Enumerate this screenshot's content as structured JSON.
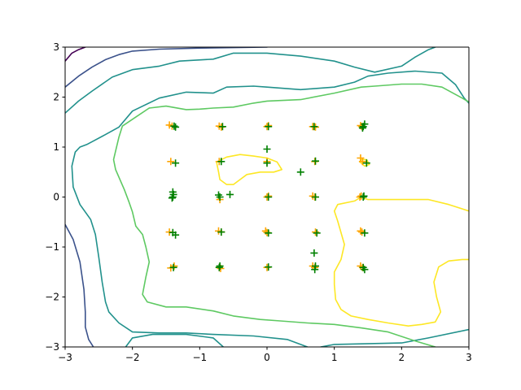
{
  "chart_data": {
    "type": "scatter",
    "title": "",
    "xlabel": "",
    "ylabel": "",
    "xlim": [
      -3,
      3
    ],
    "ylim": [
      -3,
      3
    ],
    "xticks": [
      -3,
      -2,
      -1,
      0,
      1,
      2,
      3
    ],
    "yticks": [
      -3,
      -2,
      -1,
      0,
      1,
      2,
      3
    ],
    "xtick_labels": [
      "−3",
      "−2",
      "−1",
      "0",
      "1",
      "2",
      "3"
    ],
    "ytick_labels": [
      "−3",
      "−2",
      "−1",
      "0",
      "1",
      "2",
      "3"
    ],
    "grid": false,
    "legend": "none",
    "contours": [
      {
        "color": "#440154",
        "points": [
          [
            -3.0,
            2.72
          ],
          [
            -2.9,
            2.88
          ],
          [
            -2.8,
            2.95
          ],
          [
            -2.7,
            3.0
          ]
        ]
      },
      {
        "color": "#3b528b",
        "points": [
          [
            -3.0,
            2.2
          ],
          [
            -2.8,
            2.42
          ],
          [
            -2.6,
            2.6
          ],
          [
            -2.4,
            2.75
          ],
          [
            -2.2,
            2.85
          ],
          [
            -2.0,
            2.92
          ],
          [
            -1.6,
            2.96
          ],
          [
            -1.0,
            2.98
          ],
          [
            0.0,
            3.0
          ]
        ]
      },
      {
        "color": "#3b528b",
        "points": [
          [
            -3.0,
            -0.55
          ],
          [
            -2.88,
            -0.85
          ],
          [
            -2.78,
            -1.3
          ],
          [
            -2.72,
            -1.85
          ],
          [
            -2.7,
            -2.3
          ],
          [
            -2.7,
            -2.6
          ],
          [
            -2.65,
            -2.85
          ],
          [
            -2.58,
            -3.0
          ]
        ]
      },
      {
        "color": "#21918c",
        "points": [
          [
            -3.0,
            1.68
          ],
          [
            -2.8,
            1.92
          ],
          [
            -2.6,
            2.12
          ],
          [
            -2.3,
            2.4
          ],
          [
            -2.0,
            2.55
          ],
          [
            -1.6,
            2.62
          ],
          [
            -1.3,
            2.72
          ],
          [
            -0.8,
            2.76
          ],
          [
            -0.5,
            2.88
          ],
          [
            0.0,
            2.88
          ],
          [
            0.5,
            2.82
          ],
          [
            1.0,
            2.72
          ],
          [
            1.3,
            2.6
          ],
          [
            1.6,
            2.5
          ],
          [
            2.0,
            2.62
          ],
          [
            2.2,
            2.8
          ],
          [
            2.4,
            2.95
          ],
          [
            2.5,
            3.0
          ]
        ]
      },
      {
        "color": "#21918c",
        "points": [
          [
            3.0,
            -2.65
          ],
          [
            2.4,
            -2.82
          ],
          [
            2.0,
            -2.92
          ],
          [
            1.0,
            -2.95
          ],
          [
            0.8,
            -3.0
          ]
        ]
      },
      {
        "color": "#21918c",
        "points": [
          [
            -0.65,
            -3.0
          ],
          [
            -0.8,
            -2.82
          ],
          [
            -1.2,
            -2.75
          ],
          [
            -1.7,
            -2.75
          ],
          [
            -2.0,
            -2.82
          ],
          [
            -2.1,
            -3.0
          ]
        ]
      },
      {
        "color": "#21918c",
        "points": [
          [
            -2.9,
            0.62
          ],
          [
            -2.85,
            0.9
          ],
          [
            -2.78,
            1.0
          ],
          [
            -2.68,
            1.05
          ],
          [
            -2.58,
            1.12
          ],
          [
            -2.4,
            1.25
          ],
          [
            -2.2,
            1.4
          ],
          [
            -2.0,
            1.72
          ],
          [
            -1.6,
            1.98
          ],
          [
            -1.2,
            2.1
          ],
          [
            -0.8,
            2.08
          ],
          [
            -0.6,
            2.2
          ],
          [
            -0.2,
            2.22
          ],
          [
            0.0,
            2.2
          ],
          [
            0.5,
            2.15
          ],
          [
            1.0,
            2.2
          ],
          [
            1.3,
            2.3
          ],
          [
            1.5,
            2.42
          ],
          [
            1.8,
            2.48
          ],
          [
            2.2,
            2.52
          ],
          [
            2.6,
            2.48
          ],
          [
            2.8,
            2.25
          ],
          [
            2.93,
            1.98
          ],
          [
            3.0,
            1.88
          ]
        ]
      },
      {
        "color": "#21918c",
        "points": [
          [
            -2.9,
            0.62
          ],
          [
            -2.88,
            0.2
          ],
          [
            -2.78,
            -0.15
          ],
          [
            -2.62,
            -0.45
          ],
          [
            -2.55,
            -0.75
          ],
          [
            -2.5,
            -1.2
          ],
          [
            -2.45,
            -1.7
          ],
          [
            -2.4,
            -2.1
          ],
          [
            -2.35,
            -2.3
          ],
          [
            -2.2,
            -2.52
          ],
          [
            -2.0,
            -2.7
          ],
          [
            -1.6,
            -2.72
          ],
          [
            -1.2,
            -2.72
          ],
          [
            -0.8,
            -2.75
          ],
          [
            -0.2,
            -2.78
          ],
          [
            0.3,
            -2.85
          ],
          [
            0.6,
            -3.0
          ]
        ]
      },
      {
        "color": "#5ec962",
        "points": [
          [
            -1.75,
            1.78
          ],
          [
            -1.5,
            1.82
          ],
          [
            -1.2,
            1.75
          ],
          [
            -1.0,
            1.76
          ],
          [
            -0.8,
            1.78
          ],
          [
            -0.5,
            1.8
          ],
          [
            -0.2,
            1.88
          ],
          [
            0.0,
            1.92
          ],
          [
            0.5,
            1.95
          ],
          [
            1.0,
            2.08
          ],
          [
            1.4,
            2.2
          ],
          [
            1.6,
            2.22
          ],
          [
            2.0,
            2.26
          ],
          [
            2.3,
            2.26
          ],
          [
            2.6,
            2.2
          ],
          [
            2.9,
            1.98
          ],
          [
            3.0,
            1.9
          ]
        ]
      },
      {
        "color": "#5ec962",
        "points": [
          [
            -1.75,
            1.78
          ],
          [
            -1.95,
            1.6
          ],
          [
            -2.15,
            1.42
          ],
          [
            -2.2,
            1.2
          ],
          [
            -2.28,
            0.75
          ],
          [
            -2.25,
            0.55
          ],
          [
            -2.12,
            0.15
          ],
          [
            -2.05,
            -0.1
          ],
          [
            -2.0,
            -0.3
          ],
          [
            -1.95,
            -0.58
          ],
          [
            -1.85,
            -0.75
          ],
          [
            -1.8,
            -1.0
          ],
          [
            -1.75,
            -1.3
          ],
          [
            -1.8,
            -1.6
          ],
          [
            -1.85,
            -1.95
          ],
          [
            -1.78,
            -2.1
          ],
          [
            -1.5,
            -2.2
          ],
          [
            -1.2,
            -2.2
          ],
          [
            -0.8,
            -2.28
          ],
          [
            -0.5,
            -2.38
          ],
          [
            -0.1,
            -2.45
          ],
          [
            0.2,
            -2.48
          ],
          [
            0.6,
            -2.52
          ],
          [
            1.0,
            -2.55
          ],
          [
            1.4,
            -2.62
          ],
          [
            1.8,
            -2.7
          ],
          [
            2.2,
            -2.88
          ],
          [
            2.5,
            -3.0
          ]
        ]
      },
      {
        "color": "#fde725",
        "points": [
          [
            -0.75,
            0.7
          ],
          [
            -0.6,
            0.8
          ],
          [
            -0.4,
            0.85
          ],
          [
            -0.2,
            0.82
          ],
          [
            0.0,
            0.78
          ],
          [
            0.15,
            0.7
          ],
          [
            0.22,
            0.55
          ],
          [
            0.1,
            0.5
          ],
          [
            -0.1,
            0.5
          ],
          [
            -0.3,
            0.45
          ],
          [
            -0.4,
            0.35
          ],
          [
            -0.5,
            0.25
          ],
          [
            -0.6,
            0.25
          ],
          [
            -0.7,
            0.35
          ],
          [
            -0.72,
            0.5
          ],
          [
            -0.75,
            0.7
          ]
        ]
      },
      {
        "color": "#fde725",
        "points": [
          [
            1.4,
            0.68
          ],
          [
            1.45,
            0.62
          ],
          [
            1.52,
            0.65
          ],
          [
            1.48,
            0.75
          ],
          [
            1.4,
            0.75
          ],
          [
            1.38,
            0.7
          ],
          [
            1.4,
            0.68
          ]
        ]
      },
      {
        "color": "#fde725",
        "points": [
          [
            1.4,
            0.0
          ],
          [
            1.5,
            -0.05
          ],
          [
            1.7,
            -0.05
          ],
          [
            2.0,
            -0.05
          ],
          [
            2.4,
            -0.05
          ],
          [
            2.7,
            -0.15
          ],
          [
            3.0,
            -0.28
          ]
        ]
      },
      {
        "color": "#fde725",
        "points": [
          [
            1.4,
            0.0
          ],
          [
            1.3,
            -0.08
          ],
          [
            1.05,
            -0.15
          ],
          [
            1.0,
            -0.28
          ],
          [
            1.05,
            -0.48
          ],
          [
            1.15,
            -0.95
          ],
          [
            1.1,
            -1.25
          ],
          [
            1.0,
            -1.5
          ],
          [
            1.0,
            -1.75
          ],
          [
            1.02,
            -2.05
          ],
          [
            1.1,
            -2.25
          ],
          [
            1.25,
            -2.38
          ],
          [
            1.5,
            -2.45
          ],
          [
            1.8,
            -2.52
          ],
          [
            2.1,
            -2.58
          ],
          [
            2.3,
            -2.55
          ],
          [
            2.5,
            -2.5
          ],
          [
            2.58,
            -2.3
          ],
          [
            2.52,
            -2.0
          ],
          [
            2.48,
            -1.7
          ],
          [
            2.55,
            -1.4
          ],
          [
            2.7,
            -1.28
          ],
          [
            2.9,
            -1.25
          ],
          [
            3.0,
            -1.25
          ]
        ]
      }
    ],
    "series": [
      {
        "marker": "+",
        "color": "#ffa500",
        "points": [
          [
            -1.41,
            1.42
          ],
          [
            -1.45,
            1.44
          ],
          [
            -1.43,
            0.71
          ],
          [
            -1.45,
            -0.7
          ],
          [
            -1.38,
            -1.38
          ],
          [
            -1.43,
            -1.42
          ],
          [
            -0.71,
            1.42
          ],
          [
            -0.68,
            1.4
          ],
          [
            -0.71,
            0.71
          ],
          [
            -0.7,
            -0.05
          ],
          [
            -0.68,
            -0.7
          ],
          [
            -0.72,
            -0.68
          ],
          [
            -0.71,
            -1.41
          ],
          [
            -0.69,
            -1.43
          ],
          [
            0.0,
            1.41
          ],
          [
            0.02,
            1.43
          ],
          [
            0.0,
            0.71
          ],
          [
            0.0,
            0.0
          ],
          [
            0.02,
            0.02
          ],
          [
            0.0,
            -0.71
          ],
          [
            -0.02,
            -0.68
          ],
          [
            0.0,
            -1.41
          ],
          [
            0.68,
            1.41
          ],
          [
            0.72,
            1.4
          ],
          [
            0.71,
            0.71
          ],
          [
            0.71,
            0.0
          ],
          [
            0.68,
            0.02
          ],
          [
            0.72,
            -0.7
          ],
          [
            0.71,
            -1.41
          ],
          [
            0.68,
            -1.38
          ],
          [
            1.41,
            1.41
          ],
          [
            1.39,
            1.43
          ],
          [
            1.39,
            0.78
          ],
          [
            1.42,
            0.71
          ],
          [
            1.38,
            0.0
          ],
          [
            1.4,
            0.02
          ],
          [
            1.41,
            -0.7
          ],
          [
            1.39,
            -0.68
          ],
          [
            1.42,
            -1.41
          ],
          [
            1.39,
            -1.38
          ]
        ]
      },
      {
        "marker": "+",
        "color": "#008000",
        "points": [
          [
            -1.38,
            1.42
          ],
          [
            -1.36,
            1.4
          ],
          [
            -1.36,
            0.68
          ],
          [
            -1.4,
            0.1
          ],
          [
            -1.39,
            0.05
          ],
          [
            -1.4,
            0.0
          ],
          [
            -1.41,
            -0.02
          ],
          [
            -1.36,
            -0.76
          ],
          [
            -1.4,
            -0.71
          ],
          [
            -1.39,
            -1.41
          ],
          [
            -0.66,
            1.41
          ],
          [
            -0.68,
            0.71
          ],
          [
            -0.72,
            0.04
          ],
          [
            -0.7,
            0.0
          ],
          [
            -0.55,
            0.05
          ],
          [
            -0.68,
            -0.7
          ],
          [
            -0.7,
            -1.38
          ],
          [
            -0.71,
            -1.41
          ],
          [
            0.02,
            1.41
          ],
          [
            0.0,
            0.96
          ],
          [
            0.0,
            0.68
          ],
          [
            0.02,
            0.0
          ],
          [
            0.02,
            -0.72
          ],
          [
            0.02,
            -1.4
          ],
          [
            0.7,
            1.41
          ],
          [
            0.5,
            0.5
          ],
          [
            0.72,
            0.72
          ],
          [
            0.72,
            0.0
          ],
          [
            0.74,
            -0.72
          ],
          [
            0.7,
            -1.12
          ],
          [
            0.72,
            -1.38
          ],
          [
            0.71,
            -1.45
          ],
          [
            1.45,
            1.46
          ],
          [
            1.43,
            1.41
          ],
          [
            1.42,
            1.38
          ],
          [
            1.48,
            0.68
          ],
          [
            1.44,
            0.02
          ],
          [
            1.43,
            0.0
          ],
          [
            1.45,
            -0.72
          ],
          [
            1.43,
            -1.41
          ],
          [
            1.45,
            -1.45
          ]
        ]
      }
    ]
  }
}
